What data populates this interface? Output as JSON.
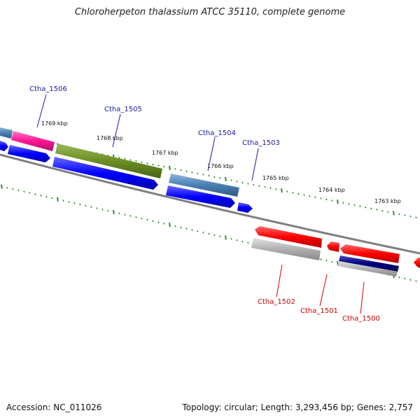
{
  "title": "Chloroherpeton thalassium ATCC 35110, complete genome",
  "footer": {
    "accession": "Accession: NC_011026",
    "stats": "Topology: circular; Length: 3,293,456 bp; Genes: 2,757"
  },
  "colors": {
    "backbone": "#808080",
    "tick": "#2e8b2e",
    "forward_label": "#1a1aa6",
    "reverse_label": "#cc0000",
    "cds_forward": "#0000ff",
    "cds_reverse": "#ff0000",
    "gene_blue": "#4a7fb5",
    "gene_pink": "#ff1493",
    "gene_olive": "#6b8e23",
    "gene_gray": "#b0b0b0",
    "gene_navy": "#000080"
  },
  "kbp_labels": [
    "1769 kbp",
    "1768 kbp",
    "1767 kbp",
    "1766 kbp",
    "1765 kbp",
    "1764 kbp",
    "1763 kbp"
  ],
  "gene_labels": {
    "forward": [
      "Ctha_1506",
      "Ctha_1505",
      "Ctha_1504",
      "Ctha_1503"
    ],
    "reverse": [
      "Ctha_1502",
      "Ctha_1501",
      "Ctha_1500"
    ]
  }
}
